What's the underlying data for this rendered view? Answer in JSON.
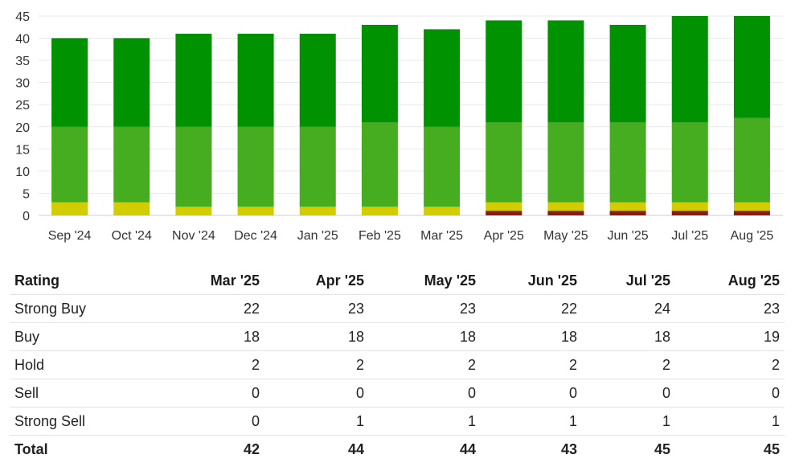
{
  "colors": {
    "strong_buy": "#009200",
    "buy": "#45ad1f",
    "hold": "#d1cd00",
    "sell": "#e07b00",
    "strong_sell": "#8b1a14"
  },
  "chart_data": {
    "type": "bar",
    "stacked": true,
    "categories": [
      "Sep '24",
      "Oct '24",
      "Nov '24",
      "Dec '24",
      "Jan '25",
      "Feb '25",
      "Mar '25",
      "Apr '25",
      "May '25",
      "Jun '25",
      "Jul '25",
      "Aug '25"
    ],
    "series": [
      {
        "key": "strong_sell",
        "values": [
          0,
          0,
          0,
          0,
          0,
          0,
          0,
          1,
          1,
          1,
          1,
          1
        ]
      },
      {
        "key": "sell",
        "values": [
          0,
          0,
          0,
          0,
          0,
          0,
          0,
          0,
          0,
          0,
          0,
          0
        ]
      },
      {
        "key": "hold",
        "values": [
          3,
          3,
          2,
          2,
          2,
          2,
          2,
          2,
          2,
          2,
          2,
          2
        ]
      },
      {
        "key": "buy",
        "values": [
          17,
          17,
          18,
          18,
          18,
          19,
          18,
          18,
          18,
          18,
          18,
          19
        ]
      },
      {
        "key": "strong_buy",
        "values": [
          20,
          20,
          21,
          21,
          21,
          22,
          22,
          23,
          23,
          22,
          24,
          23
        ]
      }
    ],
    "ylim": [
      0,
      45
    ],
    "yticks": [
      "0",
      "5",
      "10",
      "15",
      "20",
      "25",
      "30",
      "35",
      "40",
      "45"
    ],
    "grid": true,
    "legend": "none"
  },
  "table": {
    "header": {
      "rating": "Rating",
      "months": [
        "Mar '25",
        "Apr '25",
        "May '25",
        "Jun '25",
        "Jul '25",
        "Aug '25"
      ]
    },
    "rows": [
      {
        "label": "Strong Buy",
        "values": [
          "22",
          "23",
          "23",
          "22",
          "24",
          "23"
        ]
      },
      {
        "label": "Buy",
        "values": [
          "18",
          "18",
          "18",
          "18",
          "18",
          "19"
        ]
      },
      {
        "label": "Hold",
        "values": [
          "2",
          "2",
          "2",
          "2",
          "2",
          "2"
        ]
      },
      {
        "label": "Sell",
        "values": [
          "0",
          "0",
          "0",
          "0",
          "0",
          "0"
        ]
      },
      {
        "label": "Strong Sell",
        "values": [
          "0",
          "1",
          "1",
          "1",
          "1",
          "1"
        ]
      },
      {
        "label": "Total",
        "values": [
          "42",
          "44",
          "44",
          "43",
          "45",
          "45"
        ]
      }
    ]
  }
}
